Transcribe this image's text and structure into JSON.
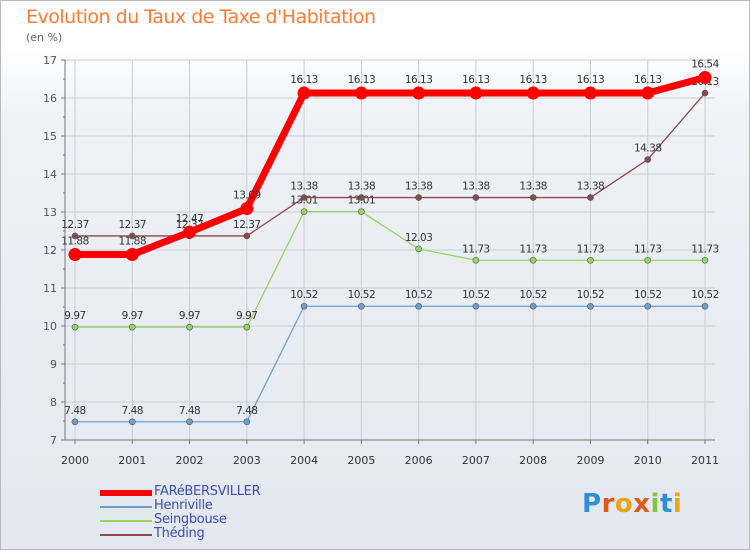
{
  "header": {
    "title": "Evolution du Taux de Taxe d'Habitation",
    "subtitle": "(en %)"
  },
  "brand": {
    "letters": [
      "P",
      "r",
      "o",
      "x",
      "i",
      "t",
      "i"
    ],
    "colors": [
      "#2e8fd6",
      "#e0581c",
      "#e8a41a",
      "#e0581c",
      "#88c23c",
      "#2e8fd6",
      "#e8a41a"
    ]
  },
  "chart_data": {
    "type": "line",
    "x": [
      "2000",
      "2001",
      "2002",
      "2003",
      "2004",
      "2005",
      "2006",
      "2007",
      "2008",
      "2009",
      "2010",
      "2011"
    ],
    "ylim": [
      7,
      17
    ],
    "yticks": [
      "7",
      "8",
      "9",
      "10",
      "11",
      "12",
      "13",
      "14",
      "15",
      "16",
      "17"
    ],
    "grid": true,
    "legend_position": "bottom-left",
    "series": [
      {
        "name": "FARéBERSVILLER",
        "color": "#ff0000",
        "values": [
          11.88,
          11.88,
          12.47,
          13.09,
          16.13,
          16.13,
          16.13,
          16.13,
          16.13,
          16.13,
          16.13,
          16.54
        ],
        "labels": [
          "11.88",
          "11.88",
          "12.47",
          "13.09",
          "16.13",
          "16.13",
          "16.13",
          "16.13",
          "16.13",
          "16.13",
          "16.13",
          "16.54"
        ]
      },
      {
        "name": "Henriville",
        "color": "#6f9fc9",
        "values": [
          7.48,
          7.48,
          7.48,
          7.48,
          10.52,
          10.52,
          10.52,
          10.52,
          10.52,
          10.52,
          10.52,
          10.52
        ],
        "labels": [
          "7.48",
          "7.48",
          "7.48",
          "7.48",
          "10.52",
          "10.52",
          "10.52",
          "10.52",
          "10.52",
          "10.52",
          "10.52",
          "10.52"
        ]
      },
      {
        "name": "Seingbouse",
        "color": "#8fd860",
        "values": [
          9.97,
          9.97,
          9.97,
          9.97,
          13.01,
          13.01,
          12.03,
          11.73,
          11.73,
          11.73,
          11.73,
          11.73
        ],
        "labels": [
          "9.97",
          "9.97",
          "9.97",
          "9.97",
          "13.01",
          "13.01",
          "12.03",
          "11.73",
          "11.73",
          "11.73",
          "11.73",
          "11.73"
        ]
      },
      {
        "name": "Théding",
        "color": "#8a4a4a",
        "values": [
          12.37,
          12.37,
          12.37,
          12.37,
          13.38,
          13.38,
          13.38,
          13.38,
          13.38,
          13.38,
          14.38,
          16.13
        ],
        "labels": [
          "12.37",
          "12.37",
          "12.37",
          "12.37",
          "13.38",
          "13.38",
          "13.38",
          "13.38",
          "13.38",
          "13.38",
          "14.38",
          "16.13"
        ]
      }
    ]
  }
}
